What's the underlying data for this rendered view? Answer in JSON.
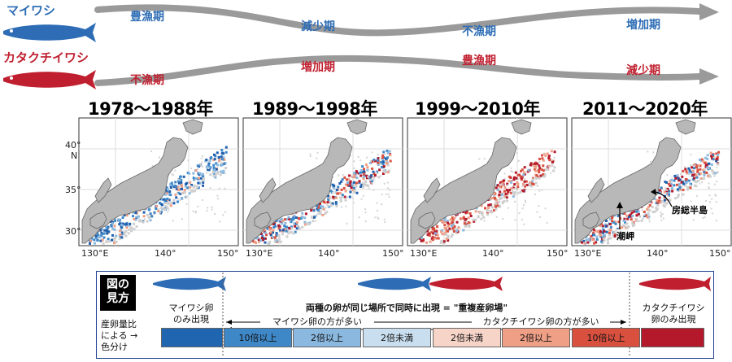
{
  "fish": {
    "sardine_name": "マイワシ",
    "anchovy_name": "カタクチイワシ",
    "sardine_color": "#2e6db5",
    "anchovy_color": "#c01f2f"
  },
  "timeline": {
    "sardine_phases": [
      "豊漁期",
      "減少期",
      "不漁期",
      "増加期"
    ],
    "anchovy_phases": [
      "不漁期",
      "増加期",
      "豊漁期",
      "減少期"
    ]
  },
  "maps": [
    {
      "period": "1978〜1988年"
    },
    {
      "period": "1989〜1998年"
    },
    {
      "period": "1999〜2010年"
    },
    {
      "period": "2011〜2020年"
    }
  ],
  "axes": {
    "lat_ticks": [
      "40°",
      "35°",
      "30°"
    ],
    "lat_unit": "N",
    "lon_ticks_first": [
      "130°E",
      "140°",
      "150°"
    ],
    "lon_ticks_other": [
      "130°E",
      "140°",
      "150°"
    ]
  },
  "annotations": {
    "boso": "房総半島",
    "shiomisaki": "潮岬"
  },
  "legend": {
    "guide_title_1": "図の",
    "guide_title_2": "見方",
    "row_label_1": "産卵量比",
    "row_label_2": "による →",
    "row_label_3": "色分け",
    "sardine_only_1": "マイワシ卵",
    "sardine_only_2": "のみ出現",
    "overlap_title": "両種の卵が同じ場所で同時に出現 = \"重複産卵場\"",
    "sardine_more": "マイワシ卵の方が多い",
    "anchovy_more": "カタクチイワシ卵の方が多い",
    "anchovy_only_1": "カタクチイワシ",
    "anchovy_only_2": "卵のみ出現",
    "scale": [
      {
        "label": "",
        "color": "#2065b0"
      },
      {
        "label": "10倍以上",
        "color": "#3f88c8"
      },
      {
        "label": "2倍以上",
        "color": "#8ab8df"
      },
      {
        "label": "2倍未満",
        "color": "#c9dff0"
      },
      {
        "label": "2倍未満",
        "color": "#f7d4c8"
      },
      {
        "label": "2倍以上",
        "color": "#ee9f86"
      },
      {
        "label": "10倍以上",
        "color": "#d9503f"
      },
      {
        "label": "",
        "color": "#b3192b"
      }
    ]
  }
}
